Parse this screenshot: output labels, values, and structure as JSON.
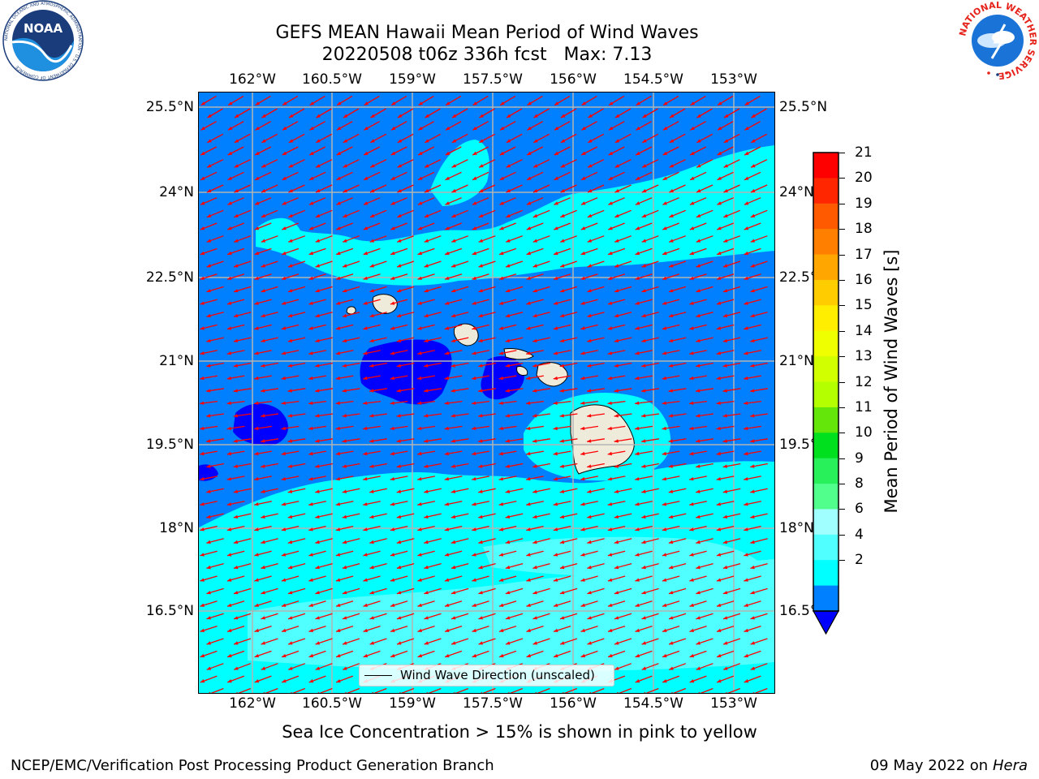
{
  "title": {
    "line1": "GEFS MEAN Hawaii Mean Period of Wind Waves",
    "line2": "20220508 t06z 336h fcst   Max: 7.13"
  },
  "axes": {
    "lon_ticks": [
      "162°W",
      "160.5°W",
      "159°W",
      "157.5°W",
      "156°W",
      "154.5°W",
      "153°W"
    ],
    "lat_ticks": [
      "25.5°N",
      "24°N",
      "22.5°N",
      "21°N",
      "19.5°N",
      "18°N",
      "16.5°N"
    ]
  },
  "colorbar": {
    "label": "Mean Period of Wind Waves [s]",
    "ticks": [
      "21",
      "20",
      "19",
      "18",
      "17",
      "16",
      "15",
      "14",
      "13",
      "12",
      "11",
      "10",
      "9",
      "8",
      "6",
      "4",
      "2"
    ],
    "colors": [
      "#ff0000",
      "#ff2600",
      "#ff5a00",
      "#ff8000",
      "#ffa600",
      "#ffcc00",
      "#ffee00",
      "#f0ff00",
      "#d2ff00",
      "#b4ff00",
      "#64e60a",
      "#00e01e",
      "#28f05a",
      "#50ff8c",
      "#a0ffff",
      "#50ffff",
      "#00ffff",
      "#0080ff"
    ],
    "extend_color": "#0000ff"
  },
  "field_colors": {
    "lt4": "#0000ff",
    "b4_6": "#0080ff",
    "b6_7": "#00ffff",
    "b7_8": "#50ffff",
    "land": "#efebdb",
    "vectors": "#ff0000"
  },
  "legend": {
    "label": "Wind Wave Direction (unscaled)"
  },
  "note": "Sea Ice Concentration > 15% is shown in pink to yellow",
  "footer": {
    "left": "NCEP/EMC/Verification Post Processing Product Generation Branch",
    "right_prefix": "09 May 2022 on",
    "right_machine": "Hera"
  },
  "logos": {
    "left_text": "NOAA",
    "left_ring": "NATIONAL OCEANIC AND ATMOSPHERIC ADMINISTRATION · U.S. DEPARTMENT OF COMMERCE",
    "right_ring": "NATIONAL WEATHER SERVICE"
  }
}
